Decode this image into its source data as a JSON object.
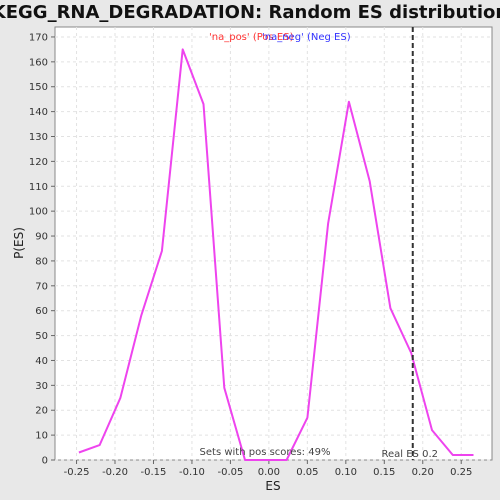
{
  "chart_data": {
    "type": "line",
    "title": "KEGG_RNA_DEGRADATION: Random ES distribution",
    "xlabel": "ES",
    "ylabel": "P(ES)",
    "xlim": [
      -0.278,
      0.29
    ],
    "ylim": [
      0,
      174
    ],
    "x_ticks": [
      -0.25,
      -0.2,
      -0.15,
      -0.1,
      -0.05,
      0.0,
      0.05,
      0.1,
      0.15,
      0.2,
      0.25
    ],
    "x_tick_labels": [
      "-0.25",
      "-0.20",
      "-0.15",
      "-0.10",
      "-0.05",
      "0.00",
      "0.05",
      "0.10",
      "0.15",
      "0.20",
      "0.25"
    ],
    "y_ticks": [
      0,
      10,
      20,
      30,
      40,
      50,
      60,
      70,
      80,
      90,
      100,
      110,
      120,
      130,
      140,
      150,
      160,
      170
    ],
    "grid": true,
    "series": [
      {
        "name": "'na_pos' (Pos ES)",
        "color": "#ff3333",
        "values": []
      },
      {
        "name": "'na_neg' (Neg ES)",
        "color": "#3333ff",
        "values": []
      },
      {
        "name": "distribution",
        "color": "#ee44ee",
        "x": [
          -0.247,
          -0.22,
          -0.193,
          -0.166,
          -0.139,
          -0.112,
          -0.085,
          -0.058,
          -0.031,
          -0.004,
          0.023,
          0.05,
          0.077,
          0.104,
          0.131,
          0.158,
          0.185,
          0.212,
          0.239,
          0.266
        ],
        "y": [
          3,
          6,
          25,
          58,
          84,
          165,
          143,
          29,
          0,
          0,
          0,
          17,
          95,
          144,
          112,
          61,
          43,
          12,
          2,
          2
        ]
      }
    ],
    "real_es": {
      "value": 0.187,
      "label": "Real ES 0.2"
    },
    "annotation": "Sets with pos scores: 49%"
  }
}
